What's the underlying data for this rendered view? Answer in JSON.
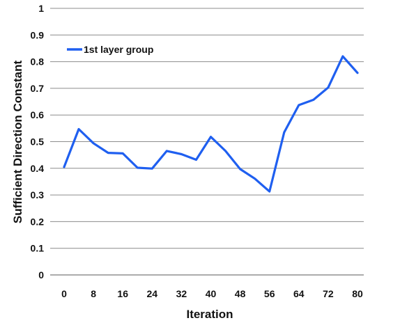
{
  "chart_data": {
    "type": "line",
    "title": "",
    "xlabel": "Iteration",
    "ylabel": "Sufficient Direction Constant",
    "xlim": [
      0,
      80
    ],
    "ylim": [
      0,
      1
    ],
    "x_ticks": [
      0,
      8,
      16,
      24,
      32,
      40,
      48,
      56,
      64,
      72,
      80
    ],
    "y_ticks": [
      0,
      0.1,
      0.2,
      0.3,
      0.4,
      0.5,
      0.6,
      0.7,
      0.8,
      0.9,
      1
    ],
    "y_tick_labels": [
      "0",
      "0.1",
      "0.2",
      "0.3",
      "0.4",
      "0.5",
      "0.6",
      "0.7",
      "0.8",
      "0.9",
      "1"
    ],
    "grid": "horizontal",
    "legend_position": "top-left",
    "series": [
      {
        "name": "1st layer group",
        "color": "#1f5ff0",
        "x": [
          0,
          4,
          8,
          12,
          16,
          20,
          24,
          28,
          32,
          36,
          40,
          44,
          48,
          52,
          56,
          60,
          64,
          68,
          72,
          76,
          80
        ],
        "y": [
          0.405,
          0.547,
          0.494,
          0.458,
          0.456,
          0.402,
          0.399,
          0.465,
          0.453,
          0.432,
          0.518,
          0.465,
          0.397,
          0.361,
          0.313,
          0.535,
          0.637,
          0.657,
          0.703,
          0.82,
          0.758
        ]
      }
    ]
  }
}
